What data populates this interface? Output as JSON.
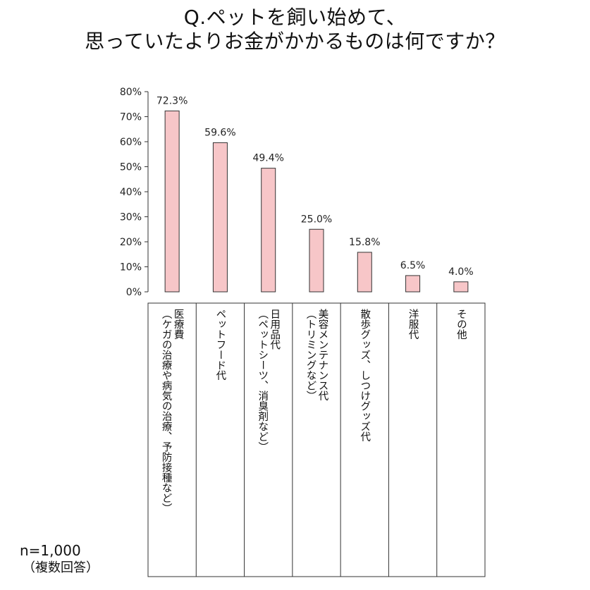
{
  "title": {
    "line1": "Q.ペットを飼い始めて、",
    "line2": "思っていたよりお金がかかるものは何ですか？"
  },
  "chart_data": {
    "type": "bar",
    "categories": [
      "医療費（ケガの治療や病気の治療、予防接種など）",
      "ペットフード代",
      "日用品代（ペットシーツ、消臭剤など）",
      "美容メンテナンス代（トリミングなど）",
      "散歩グッズ、しつけグッズ代",
      "洋服代",
      "その他"
    ],
    "category_lines": [
      [
        "医療費",
        "（ケガの治療や病気の治療、予防接種など）"
      ],
      [
        "ペットフード代"
      ],
      [
        "日用品代",
        "（ペットシーツ、消臭剤など）"
      ],
      [
        "美容メンテナンス代",
        "（トリミングなど）"
      ],
      [
        "散歩グッズ、しつけグッズ代"
      ],
      [
        "洋服代"
      ],
      [
        "その他"
      ]
    ],
    "values": [
      72.3,
      59.6,
      49.4,
      25.0,
      15.8,
      6.5,
      4.0
    ],
    "value_labels": [
      "72.3%",
      "59.6%",
      "49.4%",
      "25.0%",
      "15.8%",
      "6.5%",
      "4.0%"
    ],
    "yticks": [
      "0%",
      "10%",
      "20%",
      "30%",
      "40%",
      "50%",
      "60%",
      "70%",
      "80%"
    ],
    "ylim": [
      0,
      80
    ],
    "bar_color": "#f7c6c8",
    "grid": false
  },
  "footnote": {
    "sample": "n=1,000",
    "note": "（複数回答）"
  }
}
